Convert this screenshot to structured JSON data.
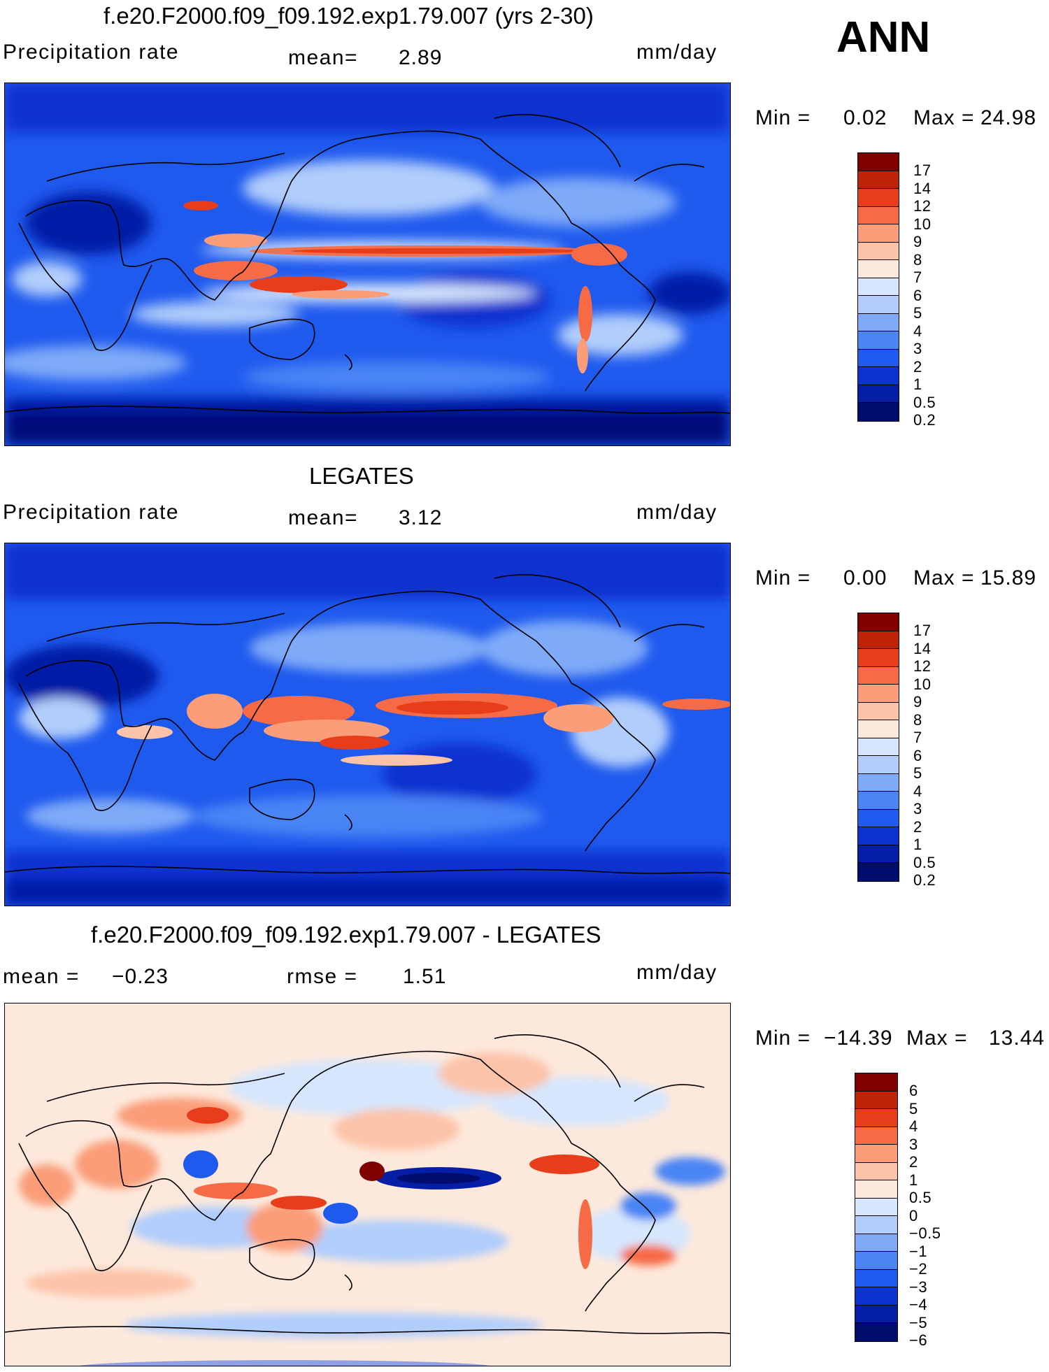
{
  "season": "ANN",
  "colors": {
    "precip_scale": [
      "#000c6e",
      "#041ea6",
      "#0a33d0",
      "#1f5aee",
      "#4a84f5",
      "#7faaf8",
      "#b0cdfb",
      "#d6e6fd",
      "#fde9dc",
      "#fcc3a8",
      "#fa9d78",
      "#f66b45",
      "#e73d1a",
      "#bf2308",
      "#800000"
    ],
    "diff_scale": [
      "#000c6e",
      "#041ea6",
      "#0a33d0",
      "#1f5aee",
      "#4a84f5",
      "#7faaf8",
      "#b0cdfb",
      "#d6e6fd",
      "#fde9dc",
      "#fcc3a8",
      "#fa9d78",
      "#f66b45",
      "#e73d1a",
      "#bf2308",
      "#800000"
    ]
  },
  "panels": [
    {
      "id": "model",
      "title": "f.e20.F2000.f09_f09.192.exp1.79.007 (yrs 2-30)",
      "left_label": "Precipitation rate",
      "stat1_label": "mean=",
      "stat1_value": "2.89",
      "stat2_label": "",
      "stat2_value": "",
      "units": "mm/day",
      "min_label": "Min =",
      "min_value": "0.02",
      "max_label": "Max =",
      "max_value": "24.98",
      "colorbar_levels": [
        "17",
        "14",
        "12",
        "10",
        "9",
        "8",
        "7",
        "6",
        "5",
        "4",
        "3",
        "2",
        "1",
        "0.5",
        "0.2"
      ]
    },
    {
      "id": "obs",
      "title": "LEGATES",
      "left_label": "Precipitation rate",
      "stat1_label": "mean=",
      "stat1_value": "3.12",
      "stat2_label": "",
      "stat2_value": "",
      "units": "mm/day",
      "min_label": "Min =",
      "min_value": "0.00",
      "max_label": "Max =",
      "max_value": "15.89",
      "colorbar_levels": [
        "17",
        "14",
        "12",
        "10",
        "9",
        "8",
        "7",
        "6",
        "5",
        "4",
        "3",
        "2",
        "1",
        "0.5",
        "0.2"
      ]
    },
    {
      "id": "diff",
      "title": "f.e20.F2000.f09_f09.192.exp1.79.007 - LEGATES",
      "left_label": "mean =",
      "stat1_label": "",
      "stat1_value": "−0.23",
      "stat2_label": "rmse =",
      "stat2_value": "1.51",
      "units": "mm/day",
      "min_label": "Min =",
      "min_value": "−14.39",
      "max_label": "Max =",
      "max_value": "13.44",
      "colorbar_levels": [
        "6",
        "5",
        "4",
        "3",
        "2",
        "1",
        "0.5",
        "0",
        "−0.5",
        "−1",
        "−2",
        "−3",
        "−4",
        "−5",
        "−6"
      ]
    }
  ]
}
